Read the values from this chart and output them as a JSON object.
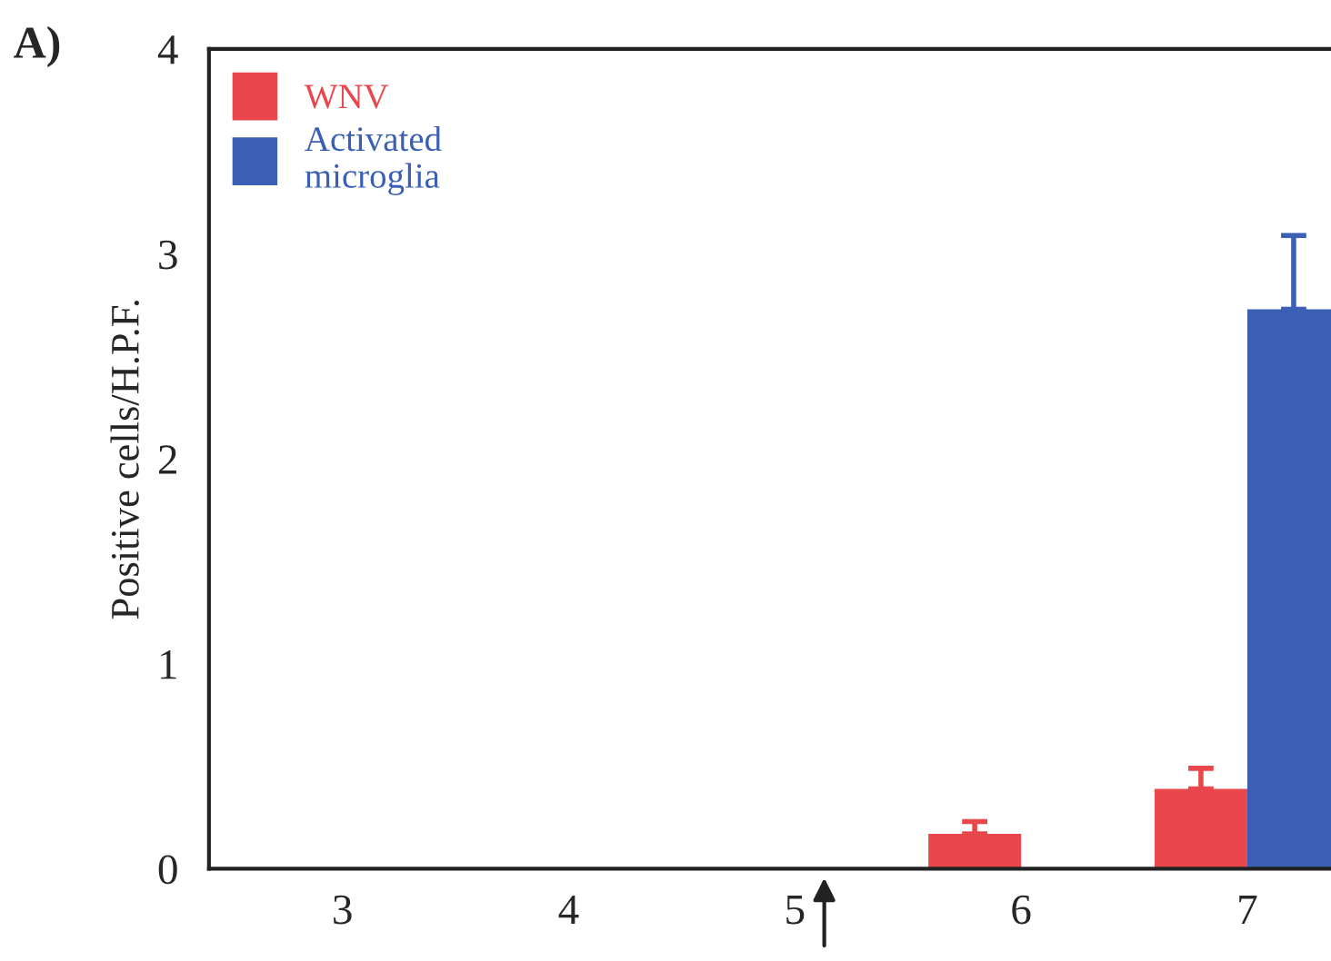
{
  "chart_data": {
    "type": "bar",
    "ylabel": "Positive cells/H.P.F.",
    "categories": [
      "3",
      "4",
      "5",
      "6",
      "7"
    ],
    "series": [
      {
        "name": "WNV",
        "color": "#e8474c",
        "values": [
          0,
          0,
          0,
          0.17,
          0.39
        ],
        "errors": [
          null,
          null,
          null,
          0.06,
          0.1
        ]
      },
      {
        "name": "Activated microglia",
        "color": "#3a5fb5",
        "values": [
          0,
          0,
          0,
          0,
          2.73
        ],
        "errors": [
          null,
          null,
          null,
          null,
          0.36
        ]
      }
    ],
    "ylim": [
      0,
      4
    ],
    "yticks": [
      0,
      1,
      2,
      3,
      4
    ],
    "legend": "top left",
    "grid": false,
    "annotations": [
      "A)"
    ]
  }
}
